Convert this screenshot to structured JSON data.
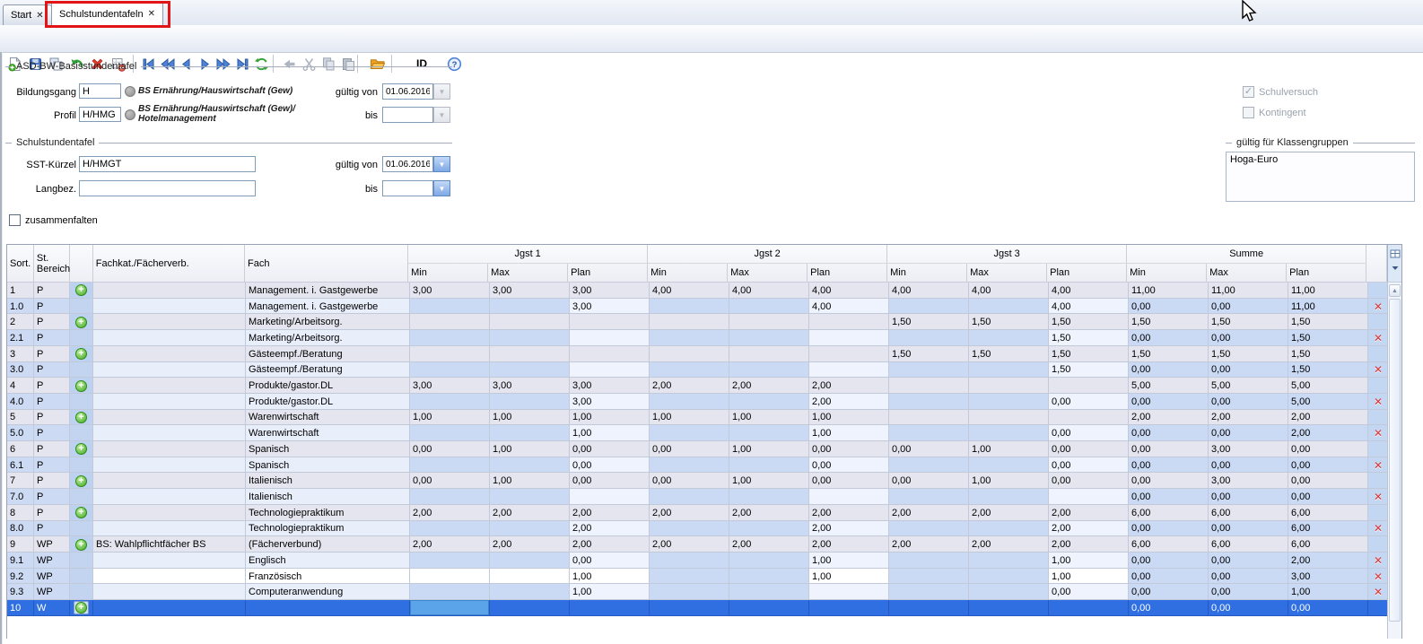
{
  "tabbar": {
    "tabs": [
      {
        "label": "Start",
        "close": "✕",
        "active": false
      },
      {
        "label": "Schulstundentafeln",
        "close": "✕",
        "active": true,
        "highlighted": true
      }
    ],
    "highlight_color": "#e11515"
  },
  "toolbar": {
    "id_button": "ID",
    "buttons": [
      {
        "name": "new-record",
        "enabled": true
      },
      {
        "name": "save",
        "enabled": true
      },
      {
        "name": "duplicate-window",
        "enabled": true
      },
      {
        "name": "undo",
        "enabled": true
      },
      {
        "name": "delete-record",
        "enabled": true
      },
      {
        "name": "remove-form",
        "enabled": true
      },
      {
        "name": "first-record",
        "enabled": true
      },
      {
        "name": "fast-backward",
        "enabled": true
      },
      {
        "name": "previous-record",
        "enabled": true
      },
      {
        "name": "next-record",
        "enabled": true
      },
      {
        "name": "fast-forward",
        "enabled": true
      },
      {
        "name": "last-record",
        "enabled": true
      },
      {
        "name": "refresh",
        "enabled": true
      },
      {
        "name": "go-back",
        "enabled": false
      },
      {
        "name": "cut",
        "enabled": false
      },
      {
        "name": "copy",
        "enabled": false
      },
      {
        "name": "paste",
        "enabled": false
      },
      {
        "name": "open-folder",
        "enabled": true
      },
      {
        "name": "help",
        "enabled": true
      }
    ]
  },
  "form": {
    "basis": {
      "title": "ASD-BW-Basisstundentafel",
      "bildungsgang_label": "Bildungsgang",
      "bildungsgang_value": "H",
      "bildungsgang_desc": "BS Ernährung/Hauswirtschaft (Gew)",
      "profil_label": "Profil",
      "profil_value": "H/HMG",
      "profil_desc_line1": "BS Ernährung/Hauswirtschaft (Gew)/",
      "profil_desc_line2": "Hotelmanagement",
      "gueltig_von_label": "gültig von",
      "gueltig_von_value": "01.06.2016",
      "bis_label": "bis",
      "bis_value": ""
    },
    "sst": {
      "title": "Schulstundentafel",
      "kuerzel_label": "SST-Kürzel",
      "kuerzel_value": "H/HMGT",
      "langbez_label": "Langbez.",
      "langbez_value": "",
      "gueltig_von_label": "gültig von",
      "gueltig_von_value": "01.06.2016",
      "bis_label": "bis",
      "bis_value": ""
    },
    "zusammenfalten_label": "zusammenfalten",
    "zusammenfalten_checked": false,
    "schulversuch_label": "Schulversuch",
    "schulversuch_checked": true,
    "kontingent_label": "Kontingent",
    "kontingent_checked": false,
    "klassengruppen": {
      "title": "gültig für Klassengruppen",
      "items": [
        "Hoga-Euro"
      ]
    }
  },
  "table": {
    "columns": {
      "sort": "Sort.",
      "bereich": "St. Bereich",
      "fachkat": "Fachkat./Fächerverb.",
      "fach": "Fach"
    },
    "groups": [
      "Jgst 1",
      "Jgst 2",
      "Jgst 3",
      "Summe"
    ],
    "subcolumns": [
      "Min",
      "Max",
      "Plan"
    ],
    "selected_row_color": "#2f6fe1",
    "rows": [
      {
        "sort": "1",
        "bereich": "P",
        "add": true,
        "fachkat": "",
        "fach": "Management. i. Gastgewerbe",
        "values": [
          "3,00",
          "3,00",
          "3,00",
          "4,00",
          "4,00",
          "4,00",
          "4,00",
          "4,00",
          "4,00",
          "11,00",
          "11,00",
          "11,00"
        ],
        "delete": false,
        "kind": "main"
      },
      {
        "sort": "1.0",
        "bereich": "P",
        "add": false,
        "fachkat": "",
        "fach": "Management. i. Gastgewerbe",
        "values": [
          "",
          "",
          "3,00",
          "",
          "",
          "4,00",
          "",
          "",
          "4,00",
          "0,00",
          "0,00",
          "11,00"
        ],
        "delete": true,
        "kind": "sub"
      },
      {
        "sort": "2",
        "bereich": "P",
        "add": true,
        "fachkat": "",
        "fach": "Marketing/Arbeitsorg.",
        "values": [
          "",
          "",
          "",
          "",
          "",
          "",
          "1,50",
          "1,50",
          "1,50",
          "1,50",
          "1,50",
          "1,50"
        ],
        "delete": false,
        "kind": "main"
      },
      {
        "sort": "2.1",
        "bereich": "P",
        "add": false,
        "fachkat": "",
        "fach": "Marketing/Arbeitsorg.",
        "values": [
          "",
          "",
          "",
          "",
          "",
          "",
          "",
          "",
          "1,50",
          "0,00",
          "0,00",
          "1,50"
        ],
        "delete": true,
        "kind": "sub"
      },
      {
        "sort": "3",
        "bereich": "P",
        "add": true,
        "fachkat": "",
        "fach": "Gästeempf./Beratung",
        "values": [
          "",
          "",
          "",
          "",
          "",
          "",
          "1,50",
          "1,50",
          "1,50",
          "1,50",
          "1,50",
          "1,50"
        ],
        "delete": false,
        "kind": "main"
      },
      {
        "sort": "3.0",
        "bereich": "P",
        "add": false,
        "fachkat": "",
        "fach": "Gästeempf./Beratung",
        "values": [
          "",
          "",
          "",
          "",
          "",
          "",
          "",
          "",
          "1,50",
          "0,00",
          "0,00",
          "1,50"
        ],
        "delete": true,
        "kind": "sub"
      },
      {
        "sort": "4",
        "bereich": "P",
        "add": true,
        "fachkat": "",
        "fach": "Produkte/gastor.DL",
        "values": [
          "3,00",
          "3,00",
          "3,00",
          "2,00",
          "2,00",
          "2,00",
          "",
          "",
          "",
          "5,00",
          "5,00",
          "5,00"
        ],
        "delete": false,
        "kind": "main"
      },
      {
        "sort": "4.0",
        "bereich": "P",
        "add": false,
        "fachkat": "",
        "fach": "Produkte/gastor.DL",
        "values": [
          "",
          "",
          "3,00",
          "",
          "",
          "2,00",
          "",
          "",
          "0,00",
          "0,00",
          "0,00",
          "5,00"
        ],
        "delete": true,
        "kind": "sub"
      },
      {
        "sort": "5",
        "bereich": "P",
        "add": true,
        "fachkat": "",
        "fach": "Warenwirtschaft",
        "values": [
          "1,00",
          "1,00",
          "1,00",
          "1,00",
          "1,00",
          "1,00",
          "",
          "",
          "",
          "2,00",
          "2,00",
          "2,00"
        ],
        "delete": false,
        "kind": "main"
      },
      {
        "sort": "5.0",
        "bereich": "P",
        "add": false,
        "fachkat": "",
        "fach": "Warenwirtschaft",
        "values": [
          "",
          "",
          "1,00",
          "",
          "",
          "1,00",
          "",
          "",
          "0,00",
          "0,00",
          "0,00",
          "2,00"
        ],
        "delete": true,
        "kind": "sub"
      },
      {
        "sort": "6",
        "bereich": "P",
        "add": true,
        "fachkat": "",
        "fach": "Spanisch",
        "values": [
          "0,00",
          "1,00",
          "0,00",
          "0,00",
          "1,00",
          "0,00",
          "0,00",
          "1,00",
          "0,00",
          "0,00",
          "3,00",
          "0,00"
        ],
        "delete": false,
        "kind": "main"
      },
      {
        "sort": "6.1",
        "bereich": "P",
        "add": false,
        "fachkat": "",
        "fach": "Spanisch",
        "values": [
          "",
          "",
          "0,00",
          "",
          "",
          "0,00",
          "",
          "",
          "0,00",
          "0,00",
          "0,00",
          "0,00"
        ],
        "delete": true,
        "kind": "sub"
      },
      {
        "sort": "7",
        "bereich": "P",
        "add": true,
        "fachkat": "",
        "fach": "Italienisch",
        "values": [
          "0,00",
          "1,00",
          "0,00",
          "0,00",
          "1,00",
          "0,00",
          "0,00",
          "1,00",
          "0,00",
          "0,00",
          "3,00",
          "0,00"
        ],
        "delete": false,
        "kind": "main"
      },
      {
        "sort": "7.0",
        "bereich": "P",
        "add": false,
        "fachkat": "",
        "fach": "Italienisch",
        "values": [
          "",
          "",
          "",
          "",
          "",
          "",
          "",
          "",
          "",
          "0,00",
          "0,00",
          "0,00"
        ],
        "delete": true,
        "kind": "sub"
      },
      {
        "sort": "8",
        "bereich": "P",
        "add": true,
        "fachkat": "",
        "fach": "Technologiepraktikum",
        "values": [
          "2,00",
          "2,00",
          "2,00",
          "2,00",
          "2,00",
          "2,00",
          "2,00",
          "2,00",
          "2,00",
          "6,00",
          "6,00",
          "6,00"
        ],
        "delete": false,
        "kind": "main"
      },
      {
        "sort": "8.0",
        "bereich": "P",
        "add": false,
        "fachkat": "",
        "fach": "Technologiepraktikum",
        "values": [
          "",
          "",
          "2,00",
          "",
          "",
          "2,00",
          "",
          "",
          "2,00",
          "0,00",
          "0,00",
          "6,00"
        ],
        "delete": true,
        "kind": "sub"
      },
      {
        "sort": "9",
        "bereich": "WP",
        "add": true,
        "fachkat": "BS: Wahlpflichtfächer BS",
        "fach": "(Fächerverbund)",
        "values": [
          "2,00",
          "2,00",
          "2,00",
          "2,00",
          "2,00",
          "2,00",
          "2,00",
          "2,00",
          "2,00",
          "6,00",
          "6,00",
          "6,00"
        ],
        "delete": false,
        "kind": "main"
      },
      {
        "sort": "9.1",
        "bereich": "WP",
        "add": false,
        "fachkat": "",
        "fach": "Englisch",
        "values": [
          "",
          "",
          "0,00",
          "",
          "",
          "1,00",
          "",
          "",
          "1,00",
          "0,00",
          "0,00",
          "2,00"
        ],
        "delete": true,
        "kind": "sub"
      },
      {
        "sort": "9.2",
        "bereich": "WP",
        "add": false,
        "fachkat": "",
        "fach": "Französisch",
        "values": [
          "",
          "",
          "1,00",
          "",
          "",
          "1,00",
          "",
          "",
          "1,00",
          "0,00",
          "0,00",
          "3,00"
        ],
        "delete": true,
        "kind": "sub",
        "white": true
      },
      {
        "sort": "9.3",
        "bereich": "WP",
        "add": false,
        "fachkat": "",
        "fach": "Computeranwendung",
        "values": [
          "",
          "",
          "1,00",
          "",
          "",
          "",
          "",
          "",
          "0,00",
          "0,00",
          "0,00",
          "1,00"
        ],
        "delete": true,
        "kind": "sub"
      },
      {
        "sort": "10",
        "bereich": "W",
        "add": true,
        "fachkat": "",
        "fach": "",
        "values": [
          "",
          "",
          "",
          "",
          "",
          "",
          "",
          "",
          "",
          "0,00",
          "0,00",
          "0,00"
        ],
        "delete": false,
        "kind": "selected",
        "focus_col": 0
      }
    ]
  }
}
